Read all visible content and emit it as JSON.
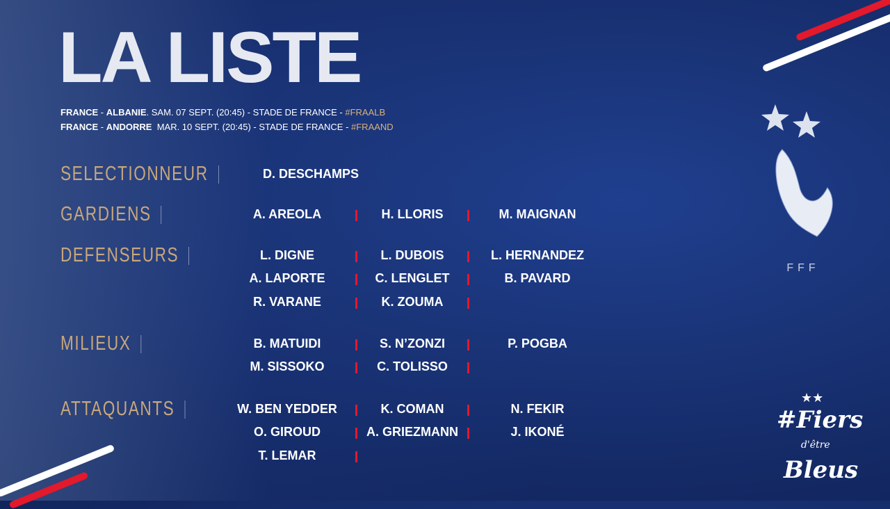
{
  "title": "LA LISTE",
  "matches": [
    {
      "teams_a": "FRANCE",
      "sep": " - ",
      "teams_b": "ALBANIE",
      "info": ". SAM. 07 SEPT. (20:45) - STADE DE FRANCE - ",
      "tag": "#FRAALB"
    },
    {
      "teams_a": "FRANCE",
      "sep": " - ",
      "teams_b": "ANDORRE",
      "info": "  MAR. 10 SEPT. (20:45) - STADE DE FRANCE - ",
      "tag": "#FRAAND"
    }
  ],
  "sections": [
    {
      "label": "SELECTIONNEUR",
      "players": [
        [
          "D. DESCHAMPS"
        ]
      ]
    },
    {
      "label": "GARDIENS",
      "players": [
        [
          "A. AREOLA",
          "H. LLORIS",
          "M. MAIGNAN"
        ]
      ]
    },
    {
      "label": "DEFENSEURS",
      "players": [
        [
          "L. DIGNE",
          "L. DUBOIS",
          "L. HERNANDEZ"
        ],
        [
          "A. LAPORTE",
          "C. LENGLET",
          "B. PAVARD"
        ],
        [
          "R. VARANE",
          "K. ZOUMA"
        ]
      ]
    },
    {
      "label": "MILIEUX",
      "players": [
        [
          "B. MATUIDI",
          "S. N’ZONZI",
          "P. POGBA"
        ],
        [
          "M. SISSOKO",
          "C. TOLISSO"
        ]
      ]
    },
    {
      "label": "ATTAQUANTS",
      "players": [
        [
          "W. BEN YEDDER",
          "K. COMAN",
          "N. FEKIR"
        ],
        [
          "O. GIROUD",
          "A. GRIEZMANN",
          "J. IKONÉ"
        ],
        [
          "T. LEMAR"
        ]
      ]
    }
  ],
  "logo_text": "FFF",
  "slogan": "#FiersdêtreBleus",
  "colors": {
    "gold": "#c9a77a",
    "red": "#e3192c",
    "blue": "#1a3478"
  }
}
